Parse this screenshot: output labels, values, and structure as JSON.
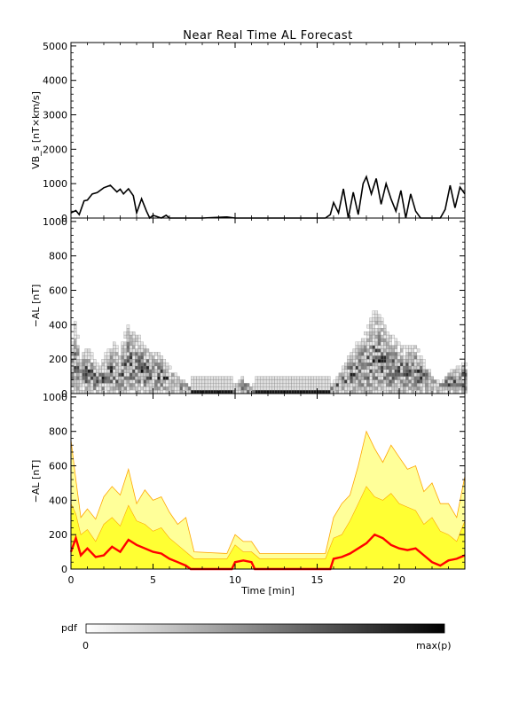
{
  "chart_data": [
    {
      "type": "line",
      "title": "Near Real Time AL Forecast",
      "ylabel": "VB_s [nT×km/s]",
      "ylim": [
        0,
        5100
      ],
      "xlim": [
        0,
        24
      ],
      "yticks": [
        0,
        1000,
        2000,
        3000,
        4000,
        5000
      ],
      "series": [
        {
          "x": [
            0,
            0.3,
            0.5,
            0.8,
            1.0,
            1.3,
            1.6,
            2.0,
            2.4,
            2.8,
            3.0,
            3.2,
            3.5,
            3.8,
            4.0,
            4.3,
            4.6,
            4.8,
            5.0,
            5.5,
            5.8,
            6.0,
            6.2,
            8,
            9.5,
            10,
            12,
            14,
            15.5,
            15.8,
            16.0,
            16.3,
            16.6,
            16.9,
            17.2,
            17.5,
            17.8,
            18.0,
            18.3,
            18.6,
            18.9,
            19.2,
            19.5,
            19.8,
            20.1,
            20.4,
            20.7,
            21.0,
            21.3,
            21.6,
            21.9,
            22.2,
            22.5,
            22.8,
            23.1,
            23.4,
            23.7,
            24.0
          ],
          "y": [
            150,
            220,
            100,
            500,
            520,
            700,
            740,
            880,
            950,
            760,
            840,
            700,
            850,
            650,
            150,
            560,
            200,
            0,
            80,
            0,
            80,
            0,
            0,
            0,
            30,
            0,
            0,
            0,
            0,
            100,
            450,
            150,
            850,
            0,
            750,
            100,
            1000,
            1200,
            700,
            1150,
            400,
            1000,
            550,
            200,
            800,
            0,
            700,
            200,
            0,
            0,
            0,
            0,
            0,
            250,
            950,
            300,
            900,
            700
          ]
        }
      ]
    },
    {
      "type": "heatmap",
      "ylabel": "−AL [nT]",
      "ylim": [
        0,
        1020
      ],
      "xlim": [
        0,
        24
      ],
      "yticks": [
        0,
        200,
        400,
        600,
        800,
        1000
      ],
      "colormap": "white-to-black (pdf)",
      "median_x": [
        0,
        0.3,
        0.6,
        1.0,
        1.5,
        2.0,
        2.5,
        3.0,
        3.5,
        4.0,
        4.5,
        5.0,
        5.5,
        6.0,
        6.5,
        7.0,
        7.3,
        9.8,
        10.5,
        11.0,
        15.8,
        16.5,
        17.0,
        17.5,
        18.0,
        18.5,
        19.0,
        19.5,
        20.0,
        20.5,
        21.0,
        21.5,
        22.0,
        22.5,
        23.0,
        23.5,
        24.0
      ],
      "median_y": [
        100,
        180,
        80,
        120,
        70,
        80,
        130,
        100,
        170,
        140,
        120,
        100,
        90,
        60,
        40,
        20,
        0,
        0,
        40,
        0,
        0,
        60,
        90,
        120,
        150,
        200,
        180,
        140,
        120,
        110,
        120,
        80,
        40,
        20,
        50,
        60,
        70
      ]
    },
    {
      "type": "area",
      "ylabel": "−AL [nT]",
      "xlabel": "Time [min]",
      "ylim": [
        0,
        1020
      ],
      "xlim": [
        0,
        24
      ],
      "yticks": [
        0,
        200,
        400,
        600,
        800,
        1000
      ],
      "xticks": [
        0,
        5,
        10,
        15,
        20
      ],
      "bands": {
        "x": [
          0,
          0.3,
          0.6,
          1.0,
          1.5,
          2.0,
          2.5,
          3.0,
          3.5,
          4.0,
          4.5,
          5.0,
          5.5,
          6.0,
          6.5,
          7.0,
          7.5,
          9.5,
          10.0,
          10.5,
          11.0,
          11.5,
          15.5,
          16.0,
          16.5,
          17.0,
          17.5,
          18.0,
          18.5,
          19.0,
          19.5,
          20.0,
          20.5,
          21.0,
          21.5,
          22.0,
          22.5,
          23.0,
          23.5,
          24.0
        ],
        "upper": [
          750,
          520,
          300,
          350,
          290,
          420,
          480,
          430,
          580,
          380,
          460,
          400,
          420,
          330,
          260,
          300,
          100,
          90,
          200,
          160,
          160,
          90,
          90,
          300,
          380,
          430,
          600,
          800,
          700,
          620,
          720,
          650,
          580,
          600,
          450,
          500,
          380,
          380,
          300,
          540
        ],
        "inner_upper": [
          380,
          320,
          200,
          230,
          160,
          260,
          300,
          250,
          370,
          280,
          260,
          220,
          240,
          180,
          140,
          100,
          60,
          60,
          140,
          100,
          100,
          60,
          60,
          180,
          200,
          280,
          380,
          480,
          420,
          400,
          440,
          380,
          360,
          340,
          260,
          300,
          220,
          200,
          160,
          280
        ]
      },
      "series": [
        {
          "x": [
            0,
            0.3,
            0.6,
            1.0,
            1.5,
            2.0,
            2.5,
            3.0,
            3.5,
            4.0,
            4.5,
            5.0,
            5.5,
            6.0,
            6.5,
            7.0,
            7.3,
            9.8,
            10.0,
            10.5,
            11.0,
            11.2,
            15.8,
            16.0,
            16.5,
            17.0,
            17.5,
            18.0,
            18.5,
            19.0,
            19.5,
            20.0,
            20.5,
            21.0,
            21.5,
            22.0,
            22.5,
            23.0,
            23.5,
            24.0
          ],
          "y": [
            100,
            180,
            80,
            120,
            70,
            80,
            130,
            100,
            170,
            140,
            120,
            100,
            90,
            60,
            40,
            20,
            0,
            0,
            40,
            50,
            40,
            0,
            0,
            60,
            70,
            90,
            120,
            150,
            200,
            180,
            140,
            120,
            110,
            120,
            80,
            40,
            20,
            50,
            60,
            80
          ],
          "color": "#ff0000"
        }
      ],
      "band_colors": [
        "#ffff33",
        "#ffa500"
      ]
    }
  ],
  "colorbar": {
    "label": "pdf",
    "min_label": "0",
    "max_label": "max(p)"
  }
}
